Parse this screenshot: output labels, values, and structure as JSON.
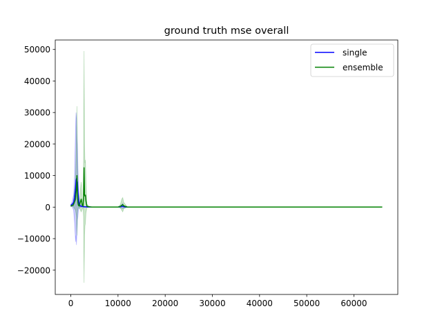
{
  "chart_data": {
    "type": "line",
    "title": "ground truth mse overall",
    "xlabel": "",
    "ylabel": "",
    "xlim": [
      -3300,
      69300
    ],
    "ylim": [
      -27700,
      53000
    ],
    "xticks": [
      0,
      10000,
      20000,
      30000,
      40000,
      50000,
      60000
    ],
    "xtick_labels": [
      "0",
      "10000",
      "20000",
      "30000",
      "40000",
      "50000",
      "60000"
    ],
    "yticks": [
      -20000,
      -10000,
      0,
      10000,
      20000,
      30000,
      40000,
      50000
    ],
    "ytick_labels": [
      "−20000",
      "−10000",
      "0",
      "10000",
      "20000",
      "30000",
      "40000",
      "50000"
    ],
    "grid": false,
    "legend": {
      "position": "top-right",
      "entries": [
        "single",
        "ensemble"
      ]
    },
    "series": [
      {
        "name": "single",
        "color": "#0000ff",
        "band_color": "#0000ff",
        "x": [
          0,
          300,
          600,
          800,
          1000,
          1100,
          1200,
          1300,
          1400,
          1500,
          1600,
          1700,
          1800,
          2000,
          2200,
          2500,
          2800,
          3000,
          3500,
          4000,
          5000,
          8000,
          10000,
          10800,
          11000,
          11200,
          12000,
          20000,
          40000,
          66000
        ],
        "y": [
          500,
          900,
          1500,
          3000,
          6000,
          8500,
          9000,
          7000,
          8000,
          5000,
          3000,
          1500,
          600,
          400,
          300,
          200,
          100,
          100,
          50,
          0,
          0,
          0,
          0,
          200,
          300,
          150,
          0,
          0,
          0,
          0
        ],
        "lower": [
          200,
          100,
          -1000,
          -5000,
          -11000,
          -9000,
          -12000,
          -8000,
          -4000,
          -3000,
          -1000,
          -500,
          -200,
          -100,
          -100,
          -50,
          0,
          0,
          0,
          0,
          0,
          0,
          0,
          -300,
          -500,
          -200,
          0,
          0,
          0,
          0
        ],
        "upper": [
          800,
          1800,
          4000,
          10000,
          25000,
          30000,
          28000,
          22000,
          20000,
          13000,
          8000,
          4000,
          1500,
          1000,
          700,
          500,
          300,
          200,
          100,
          0,
          0,
          0,
          0,
          700,
          1200,
          500,
          0,
          0,
          0,
          0
        ]
      },
      {
        "name": "ensemble",
        "color": "#008000",
        "band_color": "#008000",
        "x": [
          0,
          500,
          1000,
          1200,
          1300,
          1400,
          1500,
          1600,
          1800,
          2000,
          2200,
          2400,
          2600,
          2700,
          2800,
          2900,
          3000,
          3100,
          3200,
          3400,
          3800,
          4500,
          6000,
          10000,
          10500,
          10800,
          11000,
          11200,
          12000,
          20000,
          40000,
          66000
        ],
        "y": [
          400,
          600,
          2500,
          6000,
          10000,
          5000,
          1500,
          600,
          300,
          1500,
          2500,
          800,
          300,
          3000,
          12500,
          4000,
          3500,
          3800,
          2000,
          300,
          100,
          0,
          0,
          0,
          200,
          600,
          800,
          400,
          0,
          0,
          0,
          0
        ],
        "lower": [
          100,
          200,
          -1000,
          -3000,
          -9000,
          -2000,
          -500,
          -300,
          -200,
          -800,
          -1500,
          -700,
          -300,
          -3000,
          -24000,
          -9000,
          -6000,
          -5000,
          -2000,
          -200,
          -50,
          0,
          0,
          0,
          -300,
          -1000,
          -1500,
          -500,
          0,
          0,
          0,
          0
        ],
        "upper": [
          700,
          1200,
          8000,
          22000,
          32000,
          15000,
          5000,
          2000,
          1000,
          5000,
          8000,
          3000,
          1000,
          15000,
          49500,
          20000,
          14000,
          15000,
          9000,
          1000,
          300,
          0,
          0,
          0,
          800,
          2500,
          3000,
          1500,
          0,
          0,
          0,
          0
        ]
      }
    ]
  }
}
